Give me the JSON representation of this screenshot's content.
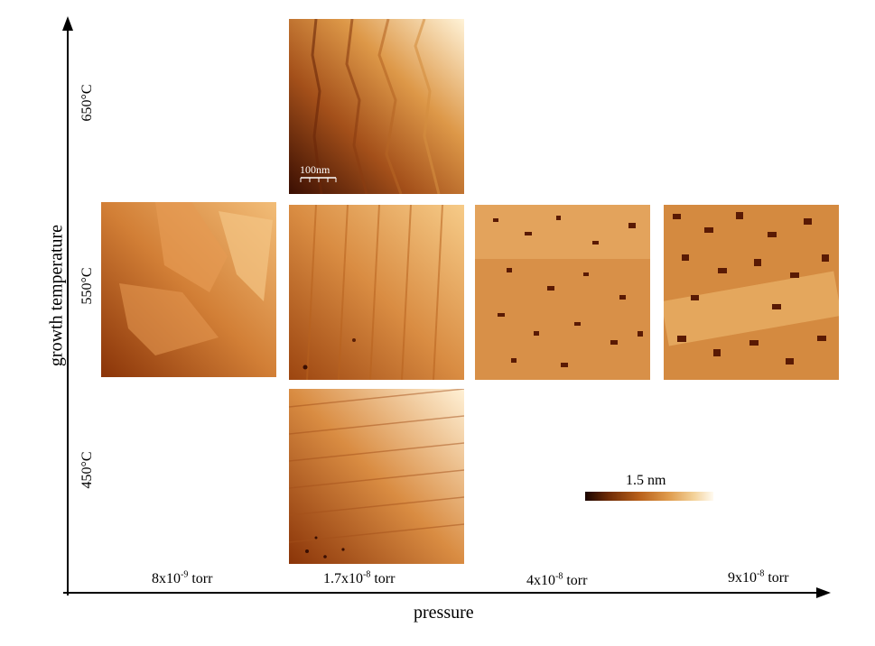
{
  "axes": {
    "y_title": "growth temperature",
    "x_title": "pressure"
  },
  "temperatures": [
    "650°C",
    "550°C",
    "450°C"
  ],
  "pressures": [
    {
      "base": "8x10",
      "exp": "-9",
      "unit": " torr"
    },
    {
      "base": "1.7x10",
      "exp": "-8",
      "unit": " torr"
    },
    {
      "base": "4x10",
      "exp": "-8",
      "unit": " torr"
    },
    {
      "base": "9x10",
      "exp": "-8",
      "unit": " torr"
    }
  ],
  "scale_bar_label": "100nm",
  "colorbar_label": "1.5 nm",
  "colors": {
    "dark": "#3a0e02",
    "mid": "#c4732a",
    "light": "#f7d9a4"
  },
  "images": [
    {
      "temperature": "650°C",
      "pressure": "1.7x10-8 torr",
      "texture": "step-terraces"
    },
    {
      "temperature": "550°C",
      "pressure": "8x10-9 torr",
      "texture": "large-islands"
    },
    {
      "temperature": "550°C",
      "pressure": "1.7x10-8 torr",
      "texture": "elongated-islands"
    },
    {
      "temperature": "550°C",
      "pressure": "4x10-8 torr",
      "texture": "pitted-islands"
    },
    {
      "temperature": "550°C",
      "pressure": "9x10-8 torr",
      "texture": "dense-pits"
    },
    {
      "temperature": "450°C",
      "pressure": "1.7x10-8 torr",
      "texture": "fine-islands"
    }
  ]
}
